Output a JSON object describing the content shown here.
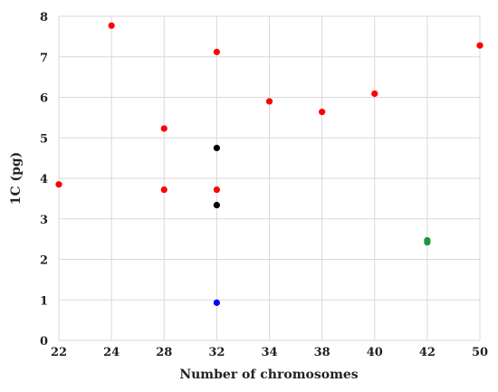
{
  "chart_data": {
    "type": "scatter",
    "title": "",
    "xlabel": "Number of chromosomes",
    "ylabel": "1C (pg)",
    "x_categories": [
      "22",
      "24",
      "28",
      "32",
      "34",
      "38",
      "40",
      "42",
      "50"
    ],
    "ylim": [
      0,
      8
    ],
    "y_ticks": [
      "0",
      "1",
      "2",
      "3",
      "4",
      "5",
      "6",
      "7",
      "8"
    ],
    "grid": true,
    "legend": "none",
    "series": [
      {
        "color": "#ff0000",
        "points": [
          {
            "x": "22",
            "y": 3.85
          },
          {
            "x": "24",
            "y": 7.77
          },
          {
            "x": "28",
            "y": 5.23
          },
          {
            "x": "28",
            "y": 3.72
          },
          {
            "x": "32",
            "y": 7.12
          },
          {
            "x": "32",
            "y": 3.72
          },
          {
            "x": "34",
            "y": 5.9
          },
          {
            "x": "38",
            "y": 5.64
          },
          {
            "x": "40",
            "y": 6.09
          },
          {
            "x": "50",
            "y": 7.28
          }
        ]
      },
      {
        "color": "#000000",
        "points": [
          {
            "x": "32",
            "y": 4.75
          },
          {
            "x": "32",
            "y": 3.34
          }
        ]
      },
      {
        "color": "#0000ff",
        "points": [
          {
            "x": "32",
            "y": 0.93
          }
        ]
      },
      {
        "color": "#1a9641",
        "points": [
          {
            "x": "42",
            "y": 2.47
          },
          {
            "x": "42",
            "y": 2.42
          }
        ]
      }
    ]
  }
}
